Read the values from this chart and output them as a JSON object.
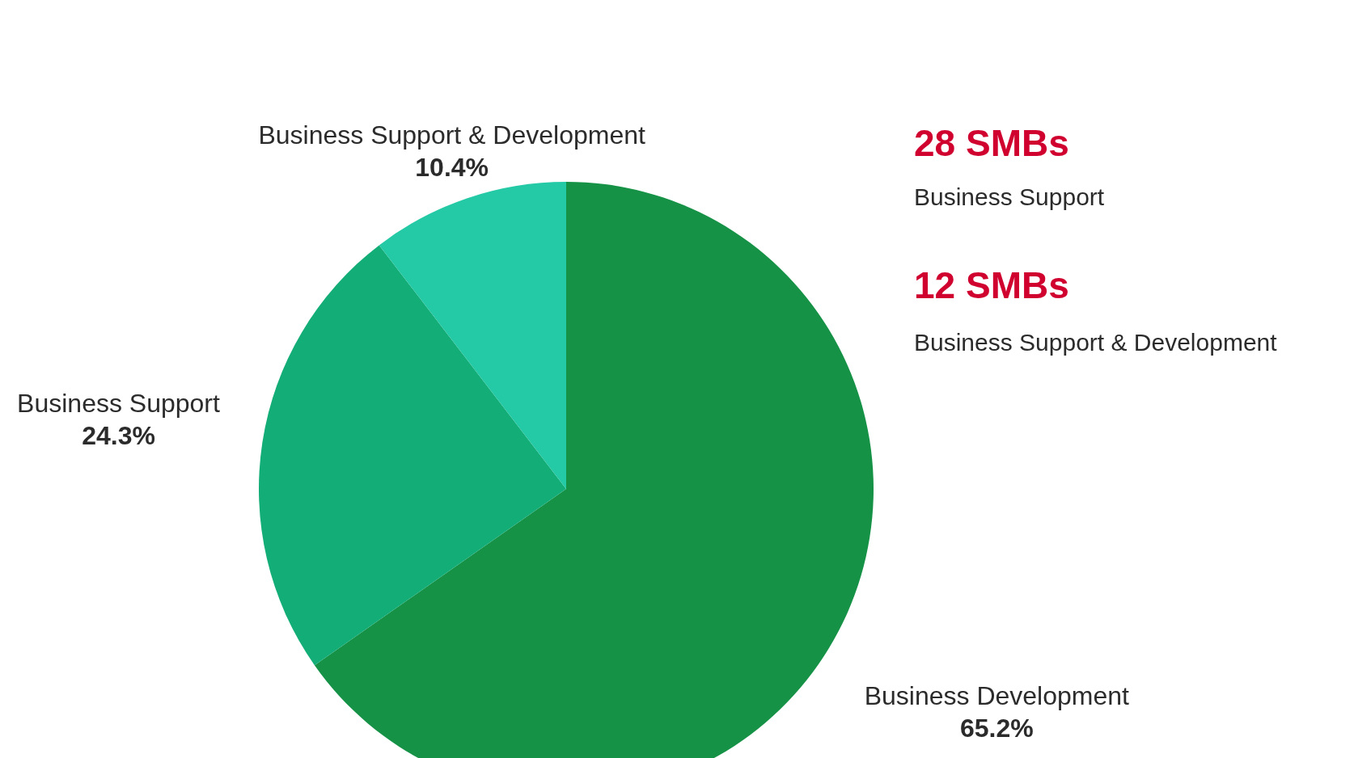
{
  "chart_data": {
    "type": "pie",
    "categories": [
      "Business Development",
      "Business Support",
      "Business Support & Development"
    ],
    "values": [
      65.2,
      24.3,
      10.4
    ],
    "value_labels": [
      "65.2%",
      "24.3%",
      "10.4%"
    ],
    "colors": [
      "#169247",
      "#13ad77",
      "#24c9a5"
    ],
    "annotations": [
      "28 SMBs",
      "Business Support",
      "12 SMBs",
      "Business Support & Development"
    ],
    "legend": false
  }
}
